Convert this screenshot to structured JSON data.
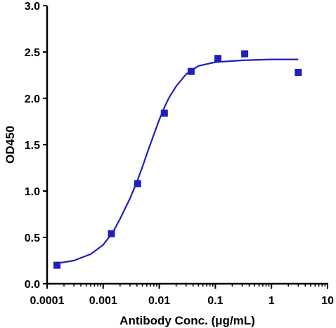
{
  "chart_data": {
    "type": "scatter",
    "title": "",
    "xlabel": "Antibody Conc. (μg/mL)",
    "ylabel": "OD450",
    "x_scale": "log",
    "xlim": [
      0.0001,
      10
    ],
    "ylim": [
      0,
      3.0
    ],
    "grid": false,
    "legend": "none",
    "x_ticks": [
      {
        "value": 0.0001,
        "label": "0.0001"
      },
      {
        "value": 0.001,
        "label": "0.001"
      },
      {
        "value": 0.01,
        "label": "0.01"
      },
      {
        "value": 0.1,
        "label": "0.1"
      },
      {
        "value": 1,
        "label": "1"
      },
      {
        "value": 10,
        "label": "10"
      }
    ],
    "y_ticks": [
      {
        "value": 0,
        "label": "0.0"
      },
      {
        "value": 0.5,
        "label": "0.5"
      },
      {
        "value": 1.0,
        "label": "1.0"
      },
      {
        "value": 1.5,
        "label": "1.5"
      },
      {
        "value": 2.0,
        "label": "2.0"
      },
      {
        "value": 2.5,
        "label": "2.5"
      },
      {
        "value": 3.0,
        "label": "3.0"
      }
    ],
    "series": [
      {
        "marker": "square",
        "color": "#1f1fbf",
        "points": [
          {
            "x": 0.00015,
            "y": 0.2
          },
          {
            "x": 0.0014,
            "y": 0.54
          },
          {
            "x": 0.0041,
            "y": 1.08
          },
          {
            "x": 0.0123,
            "y": 1.84
          },
          {
            "x": 0.037,
            "y": 2.29
          },
          {
            "x": 0.111,
            "y": 2.43
          },
          {
            "x": 0.333,
            "y": 2.48
          },
          {
            "x": 3.0,
            "y": 2.28
          }
        ]
      }
    ],
    "fit_curve": {
      "color": "#1f1fbf",
      "x_range": [
        0.00015,
        3.0
      ],
      "points": [
        {
          "x": 0.00015,
          "y": 0.22
        },
        {
          "x": 0.0003,
          "y": 0.25
        },
        {
          "x": 0.0006,
          "y": 0.32
        },
        {
          "x": 0.001,
          "y": 0.42
        },
        {
          "x": 0.0015,
          "y": 0.56
        },
        {
          "x": 0.002,
          "y": 0.7
        },
        {
          "x": 0.003,
          "y": 0.92
        },
        {
          "x": 0.004,
          "y": 1.1
        },
        {
          "x": 0.005,
          "y": 1.26
        },
        {
          "x": 0.006,
          "y": 1.4
        },
        {
          "x": 0.008,
          "y": 1.61
        },
        {
          "x": 0.01,
          "y": 1.77
        },
        {
          "x": 0.0125,
          "y": 1.91
        },
        {
          "x": 0.015,
          "y": 2.01
        },
        {
          "x": 0.02,
          "y": 2.13
        },
        {
          "x": 0.03,
          "y": 2.26
        },
        {
          "x": 0.05,
          "y": 2.35
        },
        {
          "x": 0.1,
          "y": 2.39
        },
        {
          "x": 0.3,
          "y": 2.41
        },
        {
          "x": 1,
          "y": 2.42
        },
        {
          "x": 3.0,
          "y": 2.42
        }
      ]
    }
  }
}
